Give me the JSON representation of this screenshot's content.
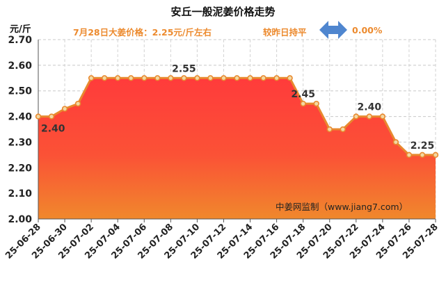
{
  "title": "安丘一般泥姜价格走势",
  "unit_label": "元/斤",
  "subtitle": {
    "price_text": "7月28日大姜价格：2.25元/斤左右",
    "change_text": "较昨日持平",
    "change_value": "0.00%",
    "change_icon": "left-right-arrow-icon"
  },
  "colors": {
    "line": "#e8892f",
    "marker_fill": "#f3d8a3",
    "area_top": "#ff3b3b",
    "area_bottom": "#f0882c",
    "accent_text": "#ec8a2e",
    "arrow": "#4f86cf"
  },
  "watermark": "中姜网监制（www.jiang7.com）",
  "chart_data": {
    "type": "area",
    "title": "安丘一般泥姜价格走势",
    "ylabel": "元/斤",
    "ylim": [
      2.0,
      2.7
    ],
    "yticks": [
      "2.00",
      "2.10",
      "2.20",
      "2.30",
      "2.40",
      "2.50",
      "2.60",
      "2.70"
    ],
    "grid": true,
    "x": [
      "25-06-28",
      "25-06-29",
      "25-06-30",
      "25-07-01",
      "25-07-02",
      "25-07-03",
      "25-07-04",
      "25-07-05",
      "25-07-06",
      "25-07-07",
      "25-07-08",
      "25-07-09",
      "25-07-10",
      "25-07-11",
      "25-07-12",
      "25-07-13",
      "25-07-14",
      "25-07-15",
      "25-07-16",
      "25-07-17",
      "25-07-18",
      "25-07-19",
      "25-07-20",
      "25-07-21",
      "25-07-22",
      "25-07-23",
      "25-07-24",
      "25-07-25",
      "25-07-26",
      "25-07-27",
      "25-07-28"
    ],
    "xtick_labels": [
      "25-06-28",
      "25-06-30",
      "25-07-02",
      "25-07-04",
      "25-07-06",
      "25-07-08",
      "25-07-10",
      "25-07-12",
      "25-07-14",
      "25-07-16",
      "25-07-18",
      "25-07-20",
      "25-07-22",
      "25-07-24",
      "25-07-26",
      "25-07-28"
    ],
    "values": [
      2.4,
      2.4,
      2.43,
      2.45,
      2.55,
      2.55,
      2.55,
      2.55,
      2.55,
      2.55,
      2.55,
      2.55,
      2.55,
      2.55,
      2.55,
      2.55,
      2.55,
      2.55,
      2.55,
      2.55,
      2.45,
      2.45,
      2.35,
      2.35,
      2.4,
      2.4,
      2.4,
      2.3,
      2.25,
      2.25,
      2.25
    ],
    "annotations": [
      {
        "index": 0,
        "label": "2.40"
      },
      {
        "index": 11,
        "label": "2.55"
      },
      {
        "index": 20,
        "label": "2.45"
      },
      {
        "index": 25,
        "label": "2.40"
      },
      {
        "index": 29,
        "label": "2.25"
      }
    ]
  }
}
